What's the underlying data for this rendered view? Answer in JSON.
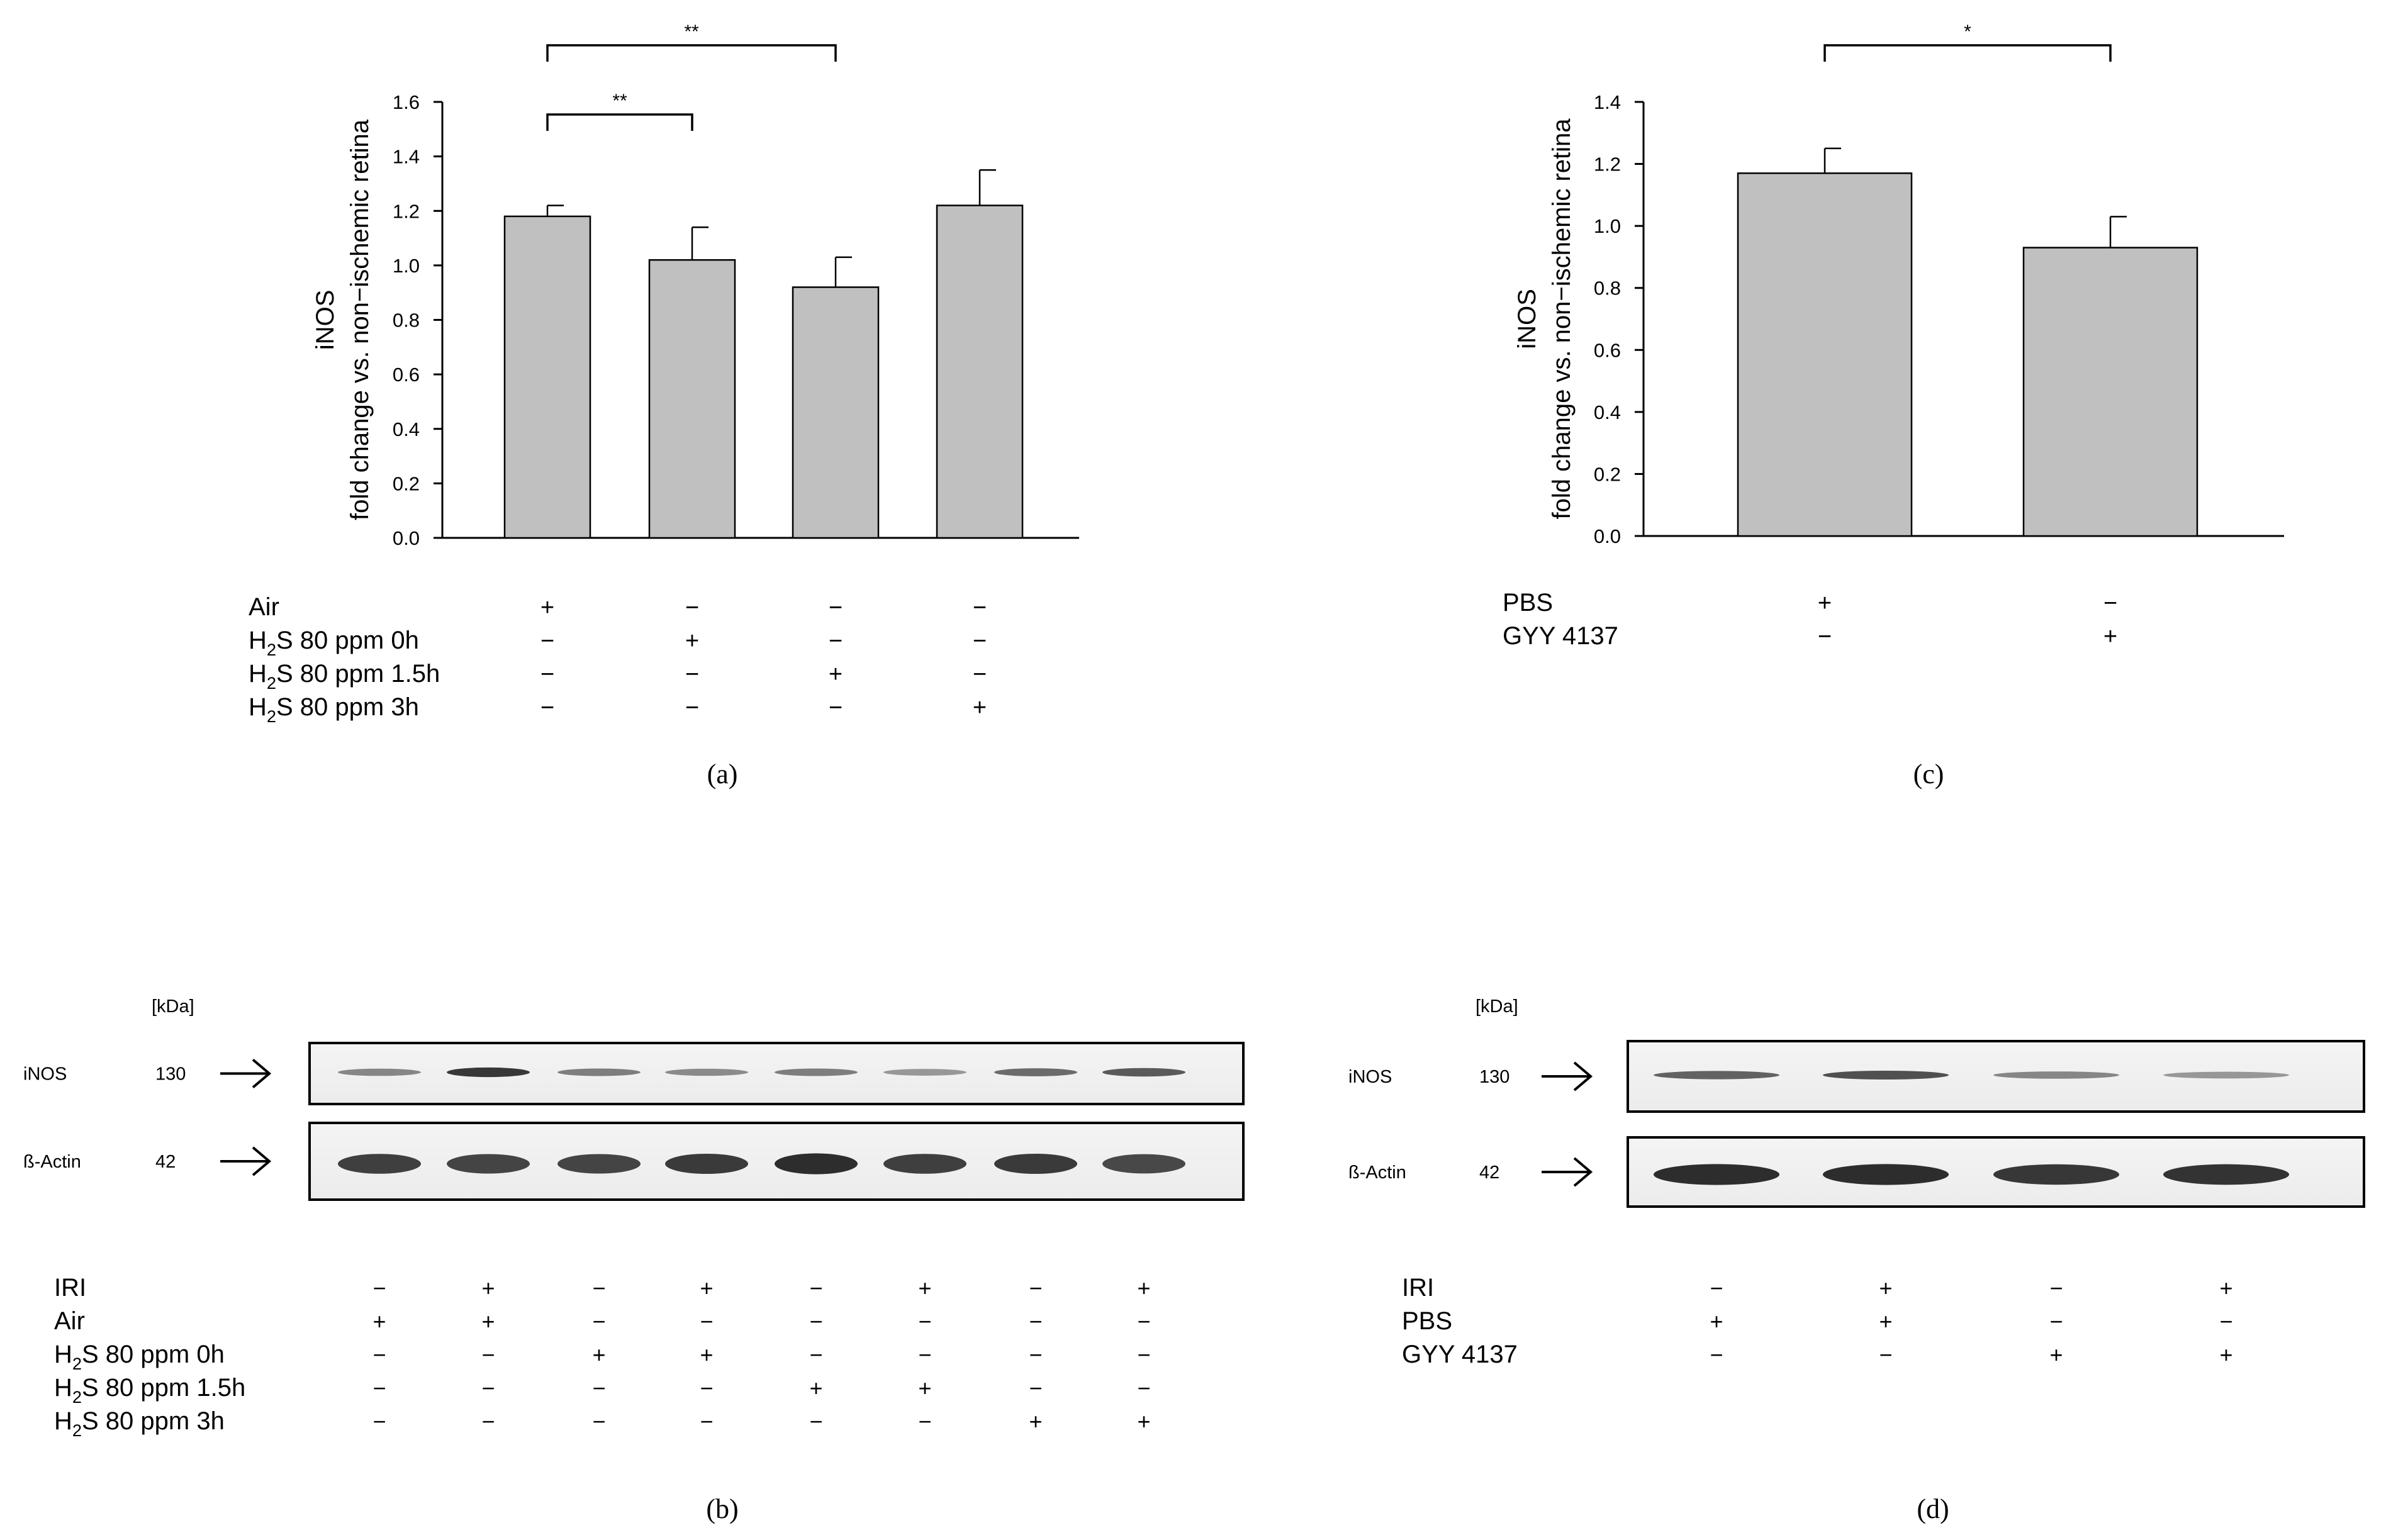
{
  "panels": {
    "a": {
      "label": "(a)",
      "chart_data": {
        "type": "bar",
        "ylabel_line1": "iNOS",
        "ylabel_line2": "fold change vs. non−ischemic retina",
        "ylim": [
          0,
          1.6
        ],
        "yticks": [
          "0.0",
          "0.2",
          "0.4",
          "0.6",
          "0.8",
          "1.0",
          "1.2",
          "1.4",
          "1.6"
        ],
        "values": [
          1.18,
          1.02,
          0.92,
          1.22
        ],
        "errors": [
          0.04,
          0.12,
          0.11,
          0.13
        ],
        "bar_color": "#c0c0c0",
        "grid": false,
        "significance": [
          {
            "from": 0,
            "to": 1,
            "label": "**"
          },
          {
            "from": 0,
            "to": 2,
            "label": "**"
          }
        ]
      },
      "conditions": [
        {
          "label_main": "Air",
          "label_sub": "",
          "label_rest": "",
          "marks": [
            "+",
            "−",
            "−",
            "−"
          ]
        },
        {
          "label_main": "H",
          "label_sub": "2",
          "label_rest": "S 80 ppm 0h",
          "marks": [
            "−",
            "+",
            "−",
            "−"
          ]
        },
        {
          "label_main": "H",
          "label_sub": "2",
          "label_rest": "S 80 ppm 1.5h",
          "marks": [
            "−",
            "−",
            "+",
            "−"
          ]
        },
        {
          "label_main": "H",
          "label_sub": "2",
          "label_rest": "S 80 ppm 3h",
          "marks": [
            "−",
            "−",
            "−",
            "+"
          ]
        }
      ]
    },
    "c": {
      "label": "(c)",
      "chart_data": {
        "type": "bar",
        "ylabel_line1": "iNOS",
        "ylabel_line2": "fold change vs. non−ischemic retina",
        "ylim": [
          0,
          1.4
        ],
        "yticks": [
          "0.0",
          "0.2",
          "0.4",
          "0.6",
          "0.8",
          "1.0",
          "1.2",
          "1.4"
        ],
        "values": [
          1.17,
          0.93
        ],
        "errors": [
          0.08,
          0.1
        ],
        "bar_color": "#c0c0c0",
        "grid": false,
        "significance": [
          {
            "from": 0,
            "to": 1,
            "label": "*"
          }
        ]
      },
      "conditions": [
        {
          "label_main": "PBS",
          "label_sub": "",
          "label_rest": "",
          "marks": [
            "+",
            "−"
          ]
        },
        {
          "label_main": "GYY 4137",
          "label_sub": "",
          "label_rest": "",
          "marks": [
            "−",
            "+"
          ]
        }
      ]
    },
    "b": {
      "label": "(b)",
      "unit_label": "[kDa]",
      "blots": [
        {
          "protein": "iNOS",
          "kda": "130",
          "intensities": [
            0.45,
            0.9,
            0.5,
            0.42,
            0.5,
            0.35,
            0.6,
            0.7
          ]
        },
        {
          "protein": "ß-Actin",
          "kda": "42",
          "intensities": [
            0.85,
            0.82,
            0.82,
            0.88,
            0.95,
            0.85,
            0.88,
            0.8
          ]
        }
      ],
      "conditions": [
        {
          "label_main": "IRI",
          "label_sub": "",
          "label_rest": "",
          "marks": [
            "−",
            "+",
            "−",
            "+",
            "−",
            "+",
            "−",
            "+"
          ]
        },
        {
          "label_main": "Air",
          "label_sub": "",
          "label_rest": "",
          "marks": [
            "+",
            "+",
            "−",
            "−",
            "−",
            "−",
            "−",
            "−"
          ]
        },
        {
          "label_main": "H",
          "label_sub": "2",
          "label_rest": "S 80 ppm 0h",
          "marks": [
            "−",
            "−",
            "+",
            "+",
            "−",
            "−",
            "−",
            "−"
          ]
        },
        {
          "label_main": "H",
          "label_sub": "2",
          "label_rest": "S 80 ppm 1.5h",
          "marks": [
            "−",
            "−",
            "−",
            "−",
            "+",
            "+",
            "−",
            "−"
          ]
        },
        {
          "label_main": "H",
          "label_sub": "2",
          "label_rest": "S 80 ppm 3h",
          "marks": [
            "−",
            "−",
            "−",
            "−",
            "−",
            "−",
            "+",
            "+"
          ]
        }
      ]
    },
    "d": {
      "label": "(d)",
      "unit_label": "[kDa]",
      "blots": [
        {
          "protein": "iNOS",
          "kda": "130",
          "intensities": [
            0.65,
            0.75,
            0.45,
            0.35
          ]
        },
        {
          "protein": "ß-Actin",
          "kda": "42",
          "intensities": [
            0.95,
            0.95,
            0.9,
            0.92
          ]
        }
      ],
      "conditions": [
        {
          "label_main": "IRI",
          "label_sub": "",
          "label_rest": "",
          "marks": [
            "−",
            "+",
            "−",
            "+"
          ]
        },
        {
          "label_main": "PBS",
          "label_sub": "",
          "label_rest": "",
          "marks": [
            "+",
            "+",
            "−",
            "−"
          ]
        },
        {
          "label_main": "GYY 4137",
          "label_sub": "",
          "label_rest": "",
          "marks": [
            "−",
            "−",
            "+",
            "+"
          ]
        }
      ]
    }
  }
}
